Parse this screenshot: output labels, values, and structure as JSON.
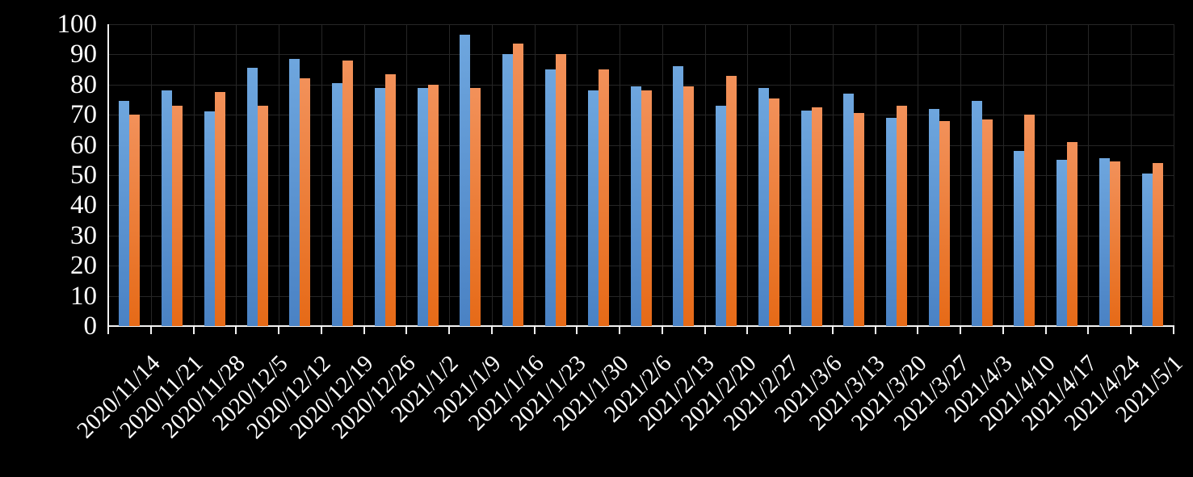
{
  "chart_data": {
    "type": "bar",
    "title": "",
    "xlabel": "",
    "ylabel": "",
    "categories": [
      "2020/11/14",
      "2020/11/21",
      "2020/11/28",
      "2020/12/5",
      "2020/12/12",
      "2020/12/19",
      "2020/12/26",
      "2021/1/2",
      "2021/1/9",
      "2021/1/16",
      "2021/1/23",
      "2021/1/30",
      "2021/2/6",
      "2021/2/13",
      "2021/2/20",
      "2021/2/27",
      "2021/3/6",
      "2021/3/13",
      "2021/3/20",
      "2021/3/27",
      "2021/4/3",
      "2021/4/10",
      "2021/4/17",
      "2021/4/24",
      "2021/5/1"
    ],
    "series": [
      {
        "name": "blue",
        "color_top": "#6ea6de",
        "color_bottom": "#4a82c4",
        "values": [
          74.5,
          78,
          71,
          85.5,
          88.5,
          80.5,
          79,
          79,
          96.5,
          90,
          85,
          78,
          79.5,
          86,
          73,
          79,
          71.5,
          77,
          69,
          72,
          74.5,
          58,
          55,
          55.5,
          50.5
        ]
      },
      {
        "name": "orange",
        "color_top": "#f2915a",
        "color_bottom": "#e66a17",
        "values": [
          70,
          73,
          77.5,
          73,
          82,
          88,
          83.5,
          80,
          79,
          93.5,
          90,
          85,
          78,
          79.5,
          83,
          75.5,
          72.5,
          70.5,
          73,
          68,
          68.5,
          70,
          61,
          54.5,
          54
        ]
      }
    ],
    "ylim": [
      0,
      100
    ],
    "y_ticks": [
      0,
      10,
      20,
      30,
      40,
      50,
      60,
      70,
      80,
      90,
      100
    ],
    "grid": true,
    "legend_position": "none",
    "colors": {
      "background": "#000000",
      "grid": "#262626",
      "axis": "#f2f2f2",
      "labels": "#ffffff"
    }
  }
}
